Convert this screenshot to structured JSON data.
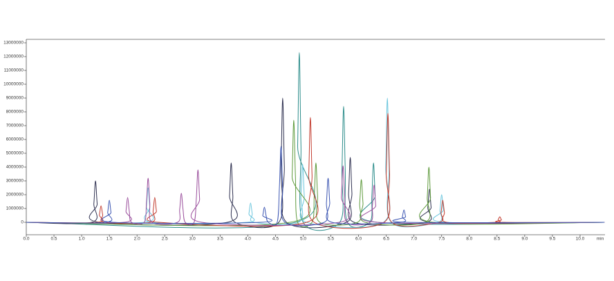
{
  "chart_data": {
    "type": "line",
    "xlabel": "min",
    "xlim": [
      0,
      10.45
    ],
    "ylim": [
      -900000,
      13250000
    ],
    "yticks": [
      0,
      1000000,
      2000000,
      3000000,
      4000000,
      5000000,
      6000000,
      7000000,
      8000000,
      9000000,
      10000000,
      11000000,
      12000000,
      13000000
    ],
    "xticks": [
      {
        "value": 0,
        "label": "0.0"
      },
      0.5,
      {
        "value": 1,
        "label": "1.0"
      },
      1.5,
      {
        "value": 2,
        "label": "2.0"
      },
      2.5,
      {
        "value": 3,
        "label": "3.0"
      },
      3.5,
      {
        "value": 4,
        "label": "4.0"
      },
      4.5,
      {
        "value": 5,
        "label": "5.0"
      },
      5.5,
      {
        "value": 6,
        "label": "6.0"
      },
      6.5,
      {
        "value": 7,
        "label": "7.0"
      },
      7.5,
      {
        "value": 8,
        "label": "8.0"
      },
      8.5,
      {
        "value": 9,
        "label": "9.0"
      },
      9.5,
      {
        "value": 10,
        "label": "10.0"
      }
    ],
    "series": [
      {
        "color": "#2b8c8a",
        "x": [
          0,
          4.86,
          4.9,
          4.93,
          4.96,
          5.0,
          5.66,
          5.7,
          5.73,
          5.76,
          5.8,
          6.2,
          6.24,
          6.27,
          6.3,
          6.34,
          10.44
        ],
        "values": [
          0,
          0,
          5535000,
          12300000,
          5535000,
          0,
          0,
          3780000,
          8400000,
          3780000,
          0,
          0,
          1935000,
          4300000,
          1935000,
          0,
          0
        ]
      },
      {
        "color": "#6cc6dd",
        "x": [
          0,
          2.13,
          2.17,
          2.2,
          2.23,
          2.27,
          3.98,
          4.02,
          4.05,
          4.08,
          4.12,
          4.92,
          4.96,
          4.99,
          5.02,
          5.06,
          6.45,
          6.49,
          6.52,
          6.55,
          6.59,
          7.43,
          7.47,
          7.5,
          7.53,
          7.57,
          10.44
        ],
        "values": [
          0,
          0,
          1125000,
          2500000,
          1125000,
          0,
          0,
          630000,
          1400000,
          630000,
          0,
          0,
          1890000,
          4200000,
          1890000,
          0,
          0,
          4050000,
          9000000,
          4050000,
          0,
          0,
          900000,
          2000000,
          900000,
          0,
          0
        ]
      },
      {
        "color": "#2d2f4f",
        "x": [
          0,
          1.18,
          1.22,
          1.25,
          1.28,
          1.32,
          3.63,
          3.67,
          3.7,
          3.73,
          3.77,
          4.56,
          4.6,
          4.63,
          4.66,
          4.7,
          5.78,
          5.82,
          5.85,
          5.88,
          5.92,
          7.21,
          7.25,
          7.28,
          7.31,
          7.35,
          10.44
        ],
        "values": [
          0,
          0,
          1350000,
          3000000,
          1350000,
          0,
          0,
          1935000,
          4300000,
          1935000,
          0,
          0,
          4050000,
          9000000,
          4050000,
          0,
          0,
          2115000,
          4700000,
          2115000,
          0,
          0,
          1080000,
          2400000,
          1080000,
          0,
          0
        ]
      },
      {
        "color": "#5e9a3c",
        "x": [
          0,
          4.76,
          4.8,
          4.83,
          4.86,
          4.9,
          5.16,
          5.2,
          5.23,
          5.26,
          5.3,
          5.98,
          6.02,
          6.05,
          6.08,
          6.12,
          7.2,
          7.24,
          7.27,
          7.3,
          7.34,
          10.44
        ],
        "values": [
          0,
          0,
          3330000,
          7400000,
          3330000,
          0,
          0,
          1935000,
          4300000,
          1935000,
          0,
          0,
          1395000,
          3100000,
          1395000,
          0,
          0,
          1800000,
          4000000,
          1800000,
          0,
          0
        ]
      },
      {
        "color": "#c23b2e",
        "x": [
          0,
          1.28,
          1.32,
          1.35,
          1.38,
          1.42,
          2.25,
          2.29,
          2.32,
          2.35,
          2.39,
          5.06,
          5.1,
          5.13,
          5.16,
          5.2,
          6.46,
          6.5,
          6.53,
          6.56,
          6.6,
          7.45,
          7.49,
          7.52,
          7.55,
          7.59,
          8.48,
          8.52,
          8.55,
          8.58,
          8.62,
          10.44
        ],
        "values": [
          0,
          0,
          540000,
          1200000,
          540000,
          0,
          0,
          810000,
          1800000,
          810000,
          0,
          0,
          3420000,
          7600000,
          3420000,
          0,
          0,
          3555000,
          7900000,
          3555000,
          0,
          0,
          720000,
          1600000,
          720000,
          0,
          0,
          180000,
          400000,
          180000,
          0,
          0
        ]
      },
      {
        "color": "#9a4e9c",
        "x": [
          0,
          1.76,
          1.8,
          1.83,
          1.86,
          1.9,
          2.13,
          2.17,
          2.2,
          2.23,
          2.27,
          2.73,
          2.77,
          2.8,
          2.83,
          2.87,
          3.03,
          3.07,
          3.1,
          3.13,
          3.17,
          5.65,
          5.69,
          5.72,
          5.75,
          5.79,
          6.21,
          6.25,
          6.28,
          6.31,
          6.35,
          10.44
        ],
        "values": [
          0,
          0,
          810000,
          1800000,
          810000,
          0,
          0,
          1440000,
          3200000,
          1440000,
          0,
          0,
          945000,
          2100000,
          945000,
          0,
          0,
          1710000,
          3800000,
          1710000,
          0,
          0,
          1845000,
          4100000,
          1845000,
          0,
          0,
          1215000,
          2700000,
          1215000,
          0,
          0
        ]
      },
      {
        "color": "#3b55b2",
        "x": [
          0,
          1.43,
          1.47,
          1.5,
          1.53,
          1.57,
          4.23,
          4.27,
          4.3,
          4.33,
          4.37,
          4.53,
          4.57,
          4.6,
          4.63,
          4.67,
          5.38,
          5.42,
          5.45,
          5.48,
          5.52,
          6.75,
          6.79,
          6.82,
          6.85,
          6.89,
          10.44
        ],
        "values": [
          0,
          0,
          720000,
          1600000,
          720000,
          0,
          0,
          495000,
          1100000,
          495000,
          0,
          0,
          2475000,
          5500000,
          2475000,
          0,
          0,
          1440000,
          3200000,
          1440000,
          0,
          0,
          405000,
          900000,
          405000,
          0,
          0
        ]
      }
    ]
  }
}
